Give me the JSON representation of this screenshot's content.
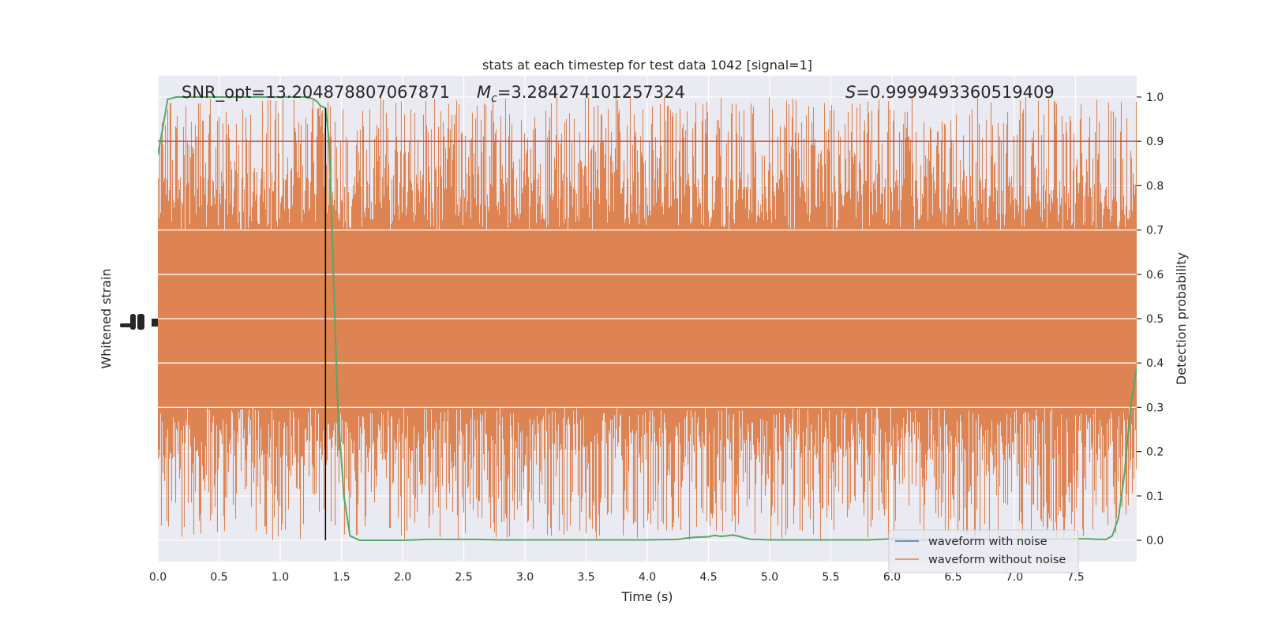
{
  "chart_data": {
    "type": "line",
    "title": "stats at each timestep for test data 1042 [signal=1]",
    "xlabel": "Time (s)",
    "ylabel_left": "Whitened strain",
    "ylabel_right": "Detection probability",
    "xlim": [
      0.0,
      8.0
    ],
    "xticks": [
      0.0,
      0.5,
      1.0,
      1.5,
      2.0,
      2.5,
      3.0,
      3.5,
      4.0,
      4.5,
      5.0,
      5.5,
      6.0,
      6.5,
      7.0,
      7.5
    ],
    "xtick_labels": [
      "0.0",
      "0.5",
      "1.0",
      "1.5",
      "2.0",
      "2.5",
      "3.0",
      "3.5",
      "4.0",
      "4.5",
      "5.0",
      "5.5",
      "6.0",
      "6.5",
      "7.0",
      "7.5"
    ],
    "ylim_right": [
      -0.048,
      1.048
    ],
    "yticks_right": [
      0.0,
      0.1,
      0.2,
      0.3,
      0.4,
      0.5,
      0.6,
      0.7,
      0.8,
      0.9,
      1.0
    ],
    "ytick_labels_right": [
      "0.0",
      "0.1",
      "0.2",
      "0.3",
      "0.4",
      "0.5",
      "0.6",
      "0.7",
      "0.8",
      "0.9",
      "1.0"
    ],
    "grid": true,
    "legend_placement": "lower-right",
    "annotations": {
      "snr": "SNR_opt=13.204878807067871",
      "mc_symbol": "M",
      "mc_subscript": "c",
      "mc_value": "=3.284274101257324",
      "s_symbol": "S",
      "s_value": "=0.9999493360519409"
    },
    "threshold": 0.9,
    "vline_x": 1.37,
    "noise_band": {
      "upper": 0.7,
      "lower": 0.3,
      "spike_max": 1.0,
      "spike_min": 0.0
    },
    "series": [
      {
        "name": "waveform with noise",
        "color": "#4c72b0",
        "role": "strain"
      },
      {
        "name": "waveform without noise",
        "color": "#dd8452",
        "role": "strain"
      },
      {
        "role": "detection_probability",
        "color": "#55a868",
        "x": [
          0.0,
          0.04,
          0.08,
          0.15,
          0.3,
          0.6,
          0.9,
          1.1,
          1.2,
          1.26,
          1.3,
          1.33,
          1.37,
          1.4,
          1.43,
          1.47,
          1.52,
          1.57,
          1.65,
          1.8,
          2.0,
          2.2,
          2.4,
          2.6,
          2.8,
          3.0,
          3.3,
          3.6,
          4.0,
          4.25,
          4.35,
          4.4,
          4.5,
          4.55,
          4.6,
          4.65,
          4.7,
          4.75,
          4.8,
          4.85,
          4.9,
          5.0,
          5.3,
          5.6,
          5.8,
          6.0,
          6.2,
          6.5,
          6.8,
          7.0,
          7.3,
          7.5,
          7.6,
          7.7,
          7.75,
          7.8,
          7.85,
          7.9,
          7.95,
          8.0
        ],
        "y": [
          0.87,
          0.93,
          0.995,
          1.0,
          1.0,
          1.0,
          1.0,
          1.0,
          1.0,
          0.997,
          0.99,
          0.98,
          0.975,
          0.9,
          0.65,
          0.3,
          0.1,
          0.01,
          0.0,
          0.0,
          0.0,
          0.002,
          0.002,
          0.002,
          0.001,
          0.001,
          0.001,
          0.001,
          0.001,
          0.002,
          0.006,
          0.007,
          0.008,
          0.011,
          0.009,
          0.01,
          0.012,
          0.009,
          0.005,
          0.002,
          0.002,
          0.001,
          0.001,
          0.001,
          0.001,
          0.003,
          0.001,
          0.001,
          0.002,
          0.002,
          0.003,
          0.003,
          0.003,
          0.002,
          0.002,
          0.01,
          0.05,
          0.15,
          0.3,
          0.39
        ]
      }
    ]
  }
}
